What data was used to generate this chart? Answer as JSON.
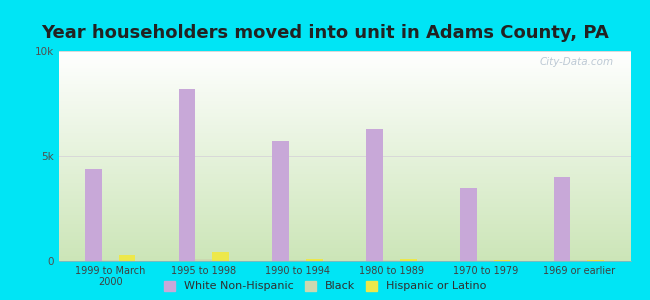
{
  "title": "Year householders moved into unit in Adams County, PA",
  "categories": [
    "1999 to March\n2000",
    "1995 to 1998",
    "1990 to 1994",
    "1980 to 1989",
    "1970 to 1979",
    "1969 or earlier"
  ],
  "white_non_hispanic": [
    4400,
    8200,
    5700,
    6300,
    3500,
    4000
  ],
  "black": [
    50,
    80,
    50,
    50,
    40,
    30
  ],
  "hispanic_or_latino": [
    280,
    410,
    110,
    100,
    60,
    55
  ],
  "white_color": "#c8a8d8",
  "black_color": "#ccd8b0",
  "hispanic_color": "#ede84a",
  "background_outer": "#00e5f5",
  "background_plot_top_left": "#f5f5f5",
  "background_plot_top_right": "#ffffff",
  "background_plot_bottom_left": "#c8e0b8",
  "background_plot_bottom_right": "#e8f0e0",
  "ylim": [
    0,
    10000
  ],
  "yticks": [
    0,
    5000,
    10000
  ],
  "ytick_labels": [
    "0",
    "5k",
    "10k"
  ],
  "bar_width": 0.18,
  "title_fontsize": 13,
  "watermark": "City-Data.com",
  "legend_labels": [
    "White Non-Hispanic",
    "Black",
    "Hispanic or Latino"
  ],
  "grid_color": "#d8d8d8"
}
